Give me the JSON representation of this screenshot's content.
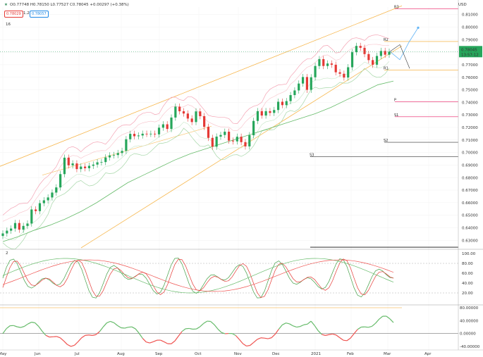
{
  "header": {
    "icon": "star-icon",
    "ohlc": "O0.77748 H0.78150 L0.77527 C0.78045 +0.00297 (+0.38%)",
    "badge_red": "0.78029",
    "badge_mid": "1.2",
    "badge_blue": "0.78057",
    "indicator": "16",
    "currency": "USD",
    "osc_label": "2"
  },
  "chart_data": [
    {
      "type": "candlestick",
      "x_ticks": [
        "May",
        "Jun",
        "Jul",
        "Aug",
        "Sep",
        "Oct",
        "Nov",
        "Dec",
        "2021",
        "Feb",
        "Mar",
        "Apr"
      ],
      "y_ticks": [
        0.81,
        0.8,
        0.79,
        0.78,
        0.77,
        0.76,
        0.75,
        0.74,
        0.73,
        0.72,
        0.71,
        0.7,
        0.69,
        0.68,
        0.67,
        0.66,
        0.65,
        0.64,
        0.63
      ],
      "ylim": [
        0.624,
        0.816
      ],
      "price_label": "0.78045",
      "countdown": "13:57:12",
      "pivot_labels": [
        "R3",
        "R2",
        "R1",
        "P",
        "S1",
        "S2",
        "S3"
      ],
      "levels": {
        "R3": 0.8145,
        "R2": 0.7885,
        "R1": 0.7657,
        "P": 0.7405,
        "S1": 0.7285,
        "S2": 0.7082,
        "S3": 0.6968
      },
      "close_series": [
        0.6355,
        0.6377,
        0.6394,
        0.6438,
        0.6385,
        0.6415,
        0.6434,
        0.6546,
        0.6533,
        0.6596,
        0.6619,
        0.6642,
        0.6681,
        0.6722,
        0.6828,
        0.6959,
        0.6898,
        0.6913,
        0.6868,
        0.6888,
        0.6875,
        0.6894,
        0.6904,
        0.6922,
        0.6924,
        0.6961,
        0.6977,
        0.698,
        0.6996,
        0.7013,
        0.7106,
        0.7149,
        0.713,
        0.7136,
        0.715,
        0.7149,
        0.715,
        0.7145,
        0.7198,
        0.7225,
        0.7188,
        0.7279,
        0.7366,
        0.7329,
        0.7311,
        0.7271,
        0.7243,
        0.7328,
        0.729,
        0.7205,
        0.7117,
        0.7047,
        0.7127,
        0.714,
        0.7166,
        0.7095,
        0.7089,
        0.7126,
        0.7083,
        0.7049,
        0.7138,
        0.7252,
        0.733,
        0.7295,
        0.733,
        0.7316,
        0.7339,
        0.7405,
        0.7378,
        0.741,
        0.7458,
        0.7495,
        0.755,
        0.7602,
        0.75,
        0.76,
        0.769,
        0.7745,
        0.769,
        0.771,
        0.77,
        0.764,
        0.7628,
        0.7598,
        0.768,
        0.78,
        0.785,
        0.7835,
        0.7785,
        0.7737,
        0.77,
        0.777,
        0.781,
        0.778,
        0.7804
      ],
      "ma_green": [
        0.629,
        0.633,
        0.638,
        0.642,
        0.647,
        0.653,
        0.66,
        0.668,
        0.676,
        0.682,
        0.688,
        0.694,
        0.699,
        0.703,
        0.707,
        0.711,
        0.715,
        0.719,
        0.723,
        0.727,
        0.731,
        0.736,
        0.742,
        0.748,
        0.754,
        0.757
      ],
      "oscillator": {
        "type": "stochastic",
        "ylim": [
          0,
          100
        ],
        "y_ticks": [
          100,
          80,
          60,
          40,
          20
        ],
        "levels": [
          80,
          20
        ]
      },
      "momentum": {
        "type": "histogram-line",
        "ylim": [
          -40,
          80
        ],
        "y_ticks": [
          "80.00000",
          "40.00000",
          "0.00000",
          "-40.00000"
        ]
      }
    }
  ]
}
